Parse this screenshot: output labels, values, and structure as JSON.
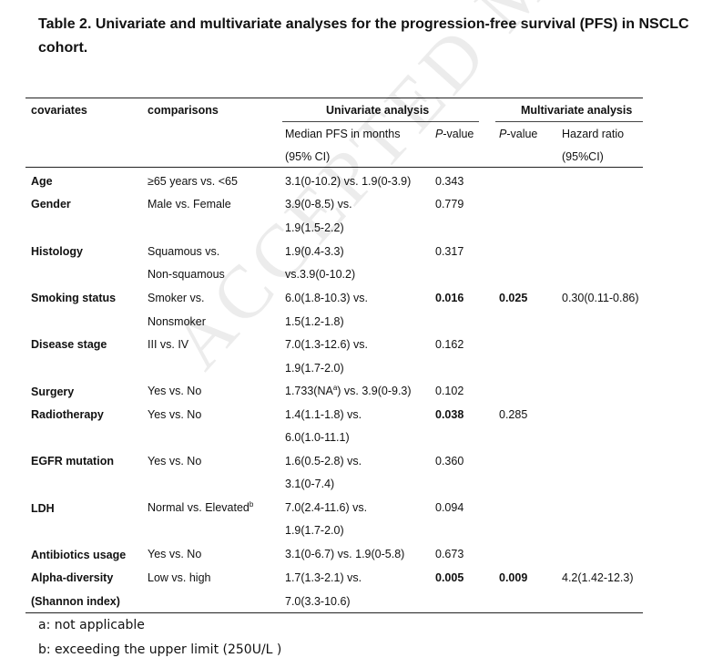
{
  "title": "Table 2. Univariate and multivariate analyses for the progression-free survival (PFS) in NSCLC cohort.",
  "watermark": "ACCEPTED MANUSCRIPT",
  "header": {
    "covariates": "covariates",
    "comparisons": "comparisons",
    "univariate": "Univariate analysis",
    "multivariate": "Multivariate analysis",
    "median_line1": "Median PFS in months",
    "median_line2": "(95% CI)",
    "pvalue_prefix": "P",
    "pvalue_suffix": "-value",
    "hr_line1": "Hazard ratio",
    "hr_line2": "(95%CI)"
  },
  "rows": [
    {
      "covariate": "Age",
      "comparison": "≥65 years vs. <65",
      "median": "3.1(0-10.2) vs. 1.9(0-3.9)",
      "p_uni": "0.343"
    },
    {
      "covariate": "Gender",
      "comparison": "Male vs. Female",
      "median": "3.9(0-8.5) vs.",
      "median2": "1.9(1.5-2.2)",
      "p_uni": "0.779"
    },
    {
      "covariate": "Histology",
      "comparison": "Squamous vs.",
      "comparison2": "Non-squamous",
      "median": "1.9(0.4-3.3)",
      "median2": "vs.3.9(0-10.2)",
      "p_uni": "0.317"
    },
    {
      "covariate": "Smoking status",
      "comparison": "Smoker vs.",
      "comparison2": "Nonsmoker",
      "median": "6.0(1.8-10.3) vs.",
      "median2": "1.5(1.2-1.8)",
      "p_uni": "0.016",
      "p_multi": "0.025",
      "hr": "0.30(0.11-0.86)"
    },
    {
      "covariate": "Disease stage",
      "comparison": "III vs. IV",
      "median": "7.0(1.3-12.6) vs.",
      "median2": "1.9(1.7-2.0)",
      "p_uni": "0.162"
    },
    {
      "covariate": "Surgery",
      "comparison": "Yes vs. No",
      "median_a": "1.733(NA",
      "median_sup": "a",
      "median_b": ") vs. 3.9(0-9.3)",
      "p_uni": "0.102"
    },
    {
      "covariate": "Radiotherapy",
      "comparison": "Yes vs. No",
      "median": "1.4(1.1-1.8) vs.",
      "median2": "6.0(1.0-11.1)",
      "p_uni": "0.038",
      "p_multi": "0.285"
    },
    {
      "covariate": "EGFR mutation",
      "comparison": "Yes vs. No",
      "median": "1.6(0.5-2.8) vs.",
      "median2": "3.1(0-7.4)",
      "p_uni": "0.360"
    },
    {
      "covariate": "LDH",
      "comparison": "Normal vs. Elevated",
      "comparison_sup": "b",
      "median": "7.0(2.4-11.6) vs.",
      "median2": "1.9(1.7-2.0)",
      "p_uni": "0.094"
    },
    {
      "covariate": "Antibiotics usage",
      "comparison": "Yes vs. No",
      "median": "3.1(0-6.7) vs. 1.9(0-5.8)",
      "p_uni": "0.673"
    },
    {
      "covariate": "Alpha-diversity",
      "covariate2": "(Shannon index)",
      "comparison": "Low vs. high",
      "median": "1.7(1.3-2.1) vs.",
      "median2": "7.0(3.3-10.6)",
      "p_uni": "0.005",
      "p_multi": "0.009",
      "hr": "4.2(1.42-12.3)"
    }
  ],
  "footnotes": {
    "a": "a: not applicable",
    "b": "b: exceeding the upper limit (250U/L )"
  }
}
